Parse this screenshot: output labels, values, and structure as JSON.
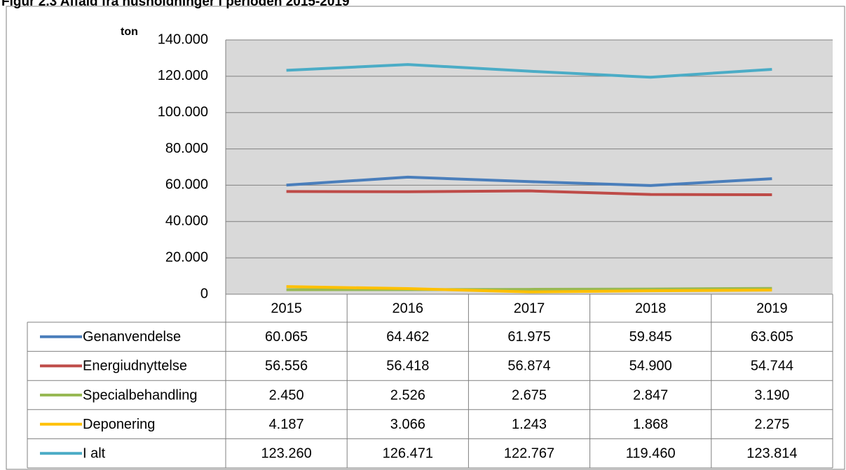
{
  "chart_data": {
    "type": "line",
    "title": "Figur 2.3 Affald fra husholdninger i perioden 2015-2019",
    "y_label": "ton",
    "categories": [
      "2015",
      "2016",
      "2017",
      "2018",
      "2019"
    ],
    "ylim": [
      0,
      140000
    ],
    "yticks": [
      0,
      {
        "value": 20000,
        "label": "20.000"
      },
      {
        "value": 40000,
        "label": "40.000"
      },
      {
        "value": 60000,
        "label": "60.000"
      },
      {
        "value": 80000,
        "label": "80.000"
      },
      {
        "value": 100000,
        "label": "100.000"
      },
      {
        "value": 120000,
        "label": "120.000"
      },
      {
        "value": 140000,
        "label": "140.000"
      }
    ],
    "grid": true,
    "series": [
      {
        "name": "Genanvendelse",
        "color": "#4a7ebb",
        "values": [
          60065,
          64462,
          61975,
          59845,
          63605
        ],
        "value_labels": [
          "60.065",
          "64.462",
          "61.975",
          "59.845",
          "63.605"
        ]
      },
      {
        "name": "Energiudnyttelse",
        "color": "#be4b48",
        "values": [
          56556,
          56418,
          56874,
          54900,
          54744
        ],
        "value_labels": [
          "56.556",
          "56.418",
          "56.874",
          "54.900",
          "54.744"
        ]
      },
      {
        "name": "Specialbehandling",
        "color": "#98b954",
        "values": [
          2450,
          2526,
          2675,
          2847,
          3190
        ],
        "value_labels": [
          "2.450",
          "2.526",
          "2.675",
          "2.847",
          "3.190"
        ]
      },
      {
        "name": "Deponering",
        "color": "#ffc000",
        "values": [
          4187,
          3066,
          1243,
          1868,
          2275
        ],
        "value_labels": [
          "4.187",
          "3.066",
          "1.243",
          "1.868",
          "2.275"
        ]
      },
      {
        "name": "I alt",
        "color": "#4bacc6",
        "values": [
          123260,
          126471,
          122767,
          119460,
          123814
        ],
        "value_labels": [
          "123.260",
          "126.471",
          "122.767",
          "119.460",
          "123.814"
        ]
      }
    ]
  }
}
